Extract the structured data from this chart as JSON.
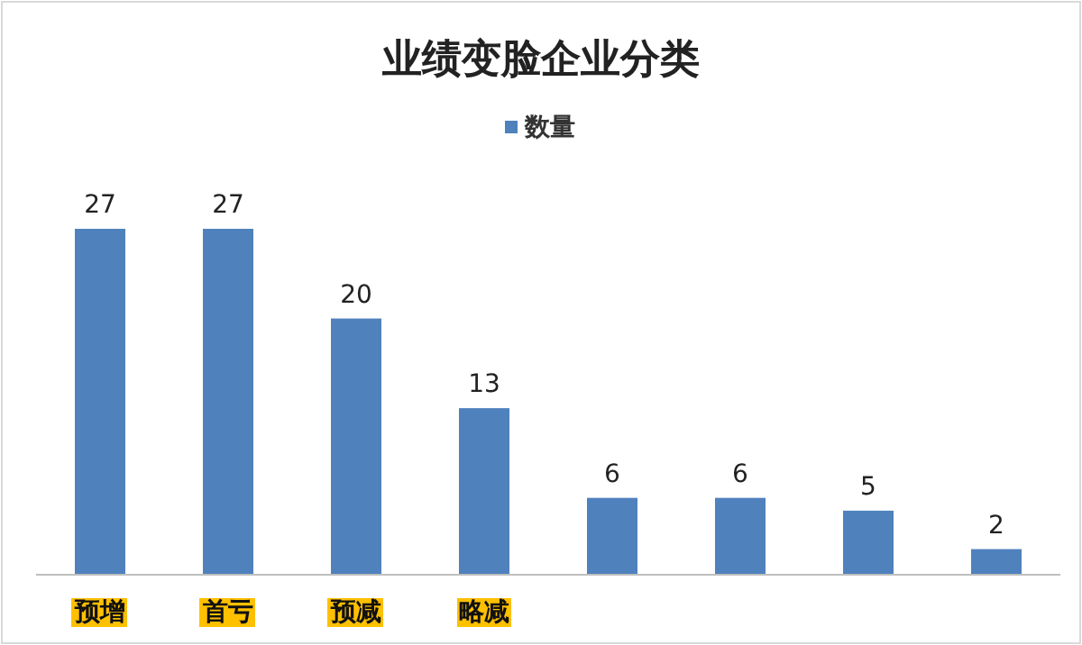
{
  "chart_data": {
    "type": "bar",
    "title": "业绩变脸企业分类",
    "categories": [
      "预增",
      "首亏",
      "预减",
      "略减",
      null,
      null,
      null,
      null
    ],
    "series": [
      {
        "name": "数量",
        "color": "#4f81bd",
        "values": [
          27,
          27,
          20,
          13,
          6,
          6,
          5,
          2
        ]
      }
    ],
    "data_labels": true,
    "legend": "top"
  }
}
